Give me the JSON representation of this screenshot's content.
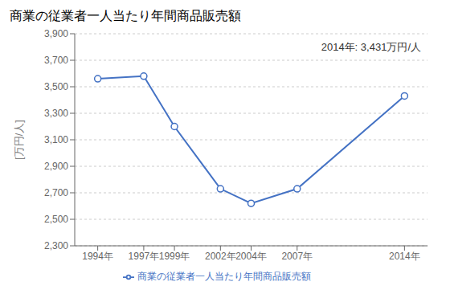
{
  "chart_data": {
    "type": "line",
    "title": "商業の従業者一人当たり年間商品販売額",
    "ylabel": "[万円/人]",
    "annotation": "2014年: 3,431万円/人",
    "x": [
      1994,
      1997,
      1999,
      2002,
      2004,
      2007,
      2014
    ],
    "series": [
      {
        "name": "商業の従業者一人当たり年間商品販売額",
        "color": "#4472C4",
        "values": [
          3560,
          3580,
          3200,
          2730,
          2620,
          2730,
          3431
        ],
        "marker": "circle"
      }
    ],
    "xlim": [
      1992.5,
      2015.5
    ],
    "xticks": [
      {
        "value": 1994,
        "label": "1994年"
      },
      {
        "value": 1997,
        "label": "1997年"
      },
      {
        "value": 1999,
        "label": "1999年"
      },
      {
        "value": 2002,
        "label": "2002年"
      },
      {
        "value": 2004,
        "label": "2004年"
      },
      {
        "value": 2007,
        "label": "2007年"
      },
      {
        "value": 2014,
        "label": "2014年"
      }
    ],
    "ylim": [
      2300,
      3900
    ],
    "yticks": [
      {
        "value": 2300,
        "label": "2,300"
      },
      {
        "value": 2500,
        "label": "2,500"
      },
      {
        "value": 2700,
        "label": "2,700"
      },
      {
        "value": 2900,
        "label": "2,900"
      },
      {
        "value": 3100,
        "label": "3,100"
      },
      {
        "value": 3300,
        "label": "3,300"
      },
      {
        "value": 3500,
        "label": "3,500"
      },
      {
        "value": 3700,
        "label": "3,700"
      },
      {
        "value": 3900,
        "label": "3,900"
      }
    ],
    "grid": "y",
    "legend": "bottom"
  }
}
